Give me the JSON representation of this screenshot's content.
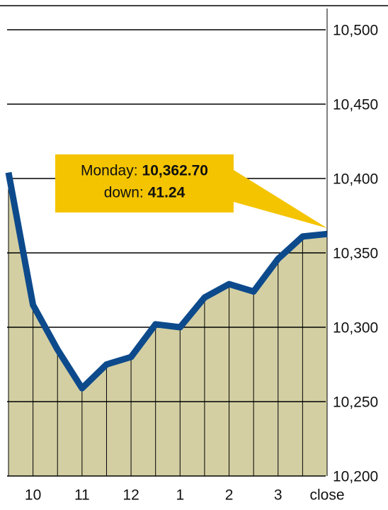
{
  "chart_data": {
    "type": "area",
    "categories": [
      null,
      "10",
      null,
      "11",
      null,
      "12",
      null,
      "1",
      null,
      "2",
      null,
      "3",
      null,
      "close"
    ],
    "values": [
      10404,
      10315,
      10285,
      10259,
      10275,
      10280,
      10302,
      10300,
      10320,
      10329,
      10324,
      10346,
      10361,
      10362.7
    ],
    "color": "#0d4a8c",
    "fill": "#d3cfa3",
    "ylim": [
      10200,
      10500
    ],
    "yticks": [
      {
        "value": 10200,
        "label": "10,200"
      },
      {
        "value": 10250,
        "label": "10,250"
      },
      {
        "value": 10300,
        "label": "10,300"
      },
      {
        "value": 10350,
        "label": "10,350"
      },
      {
        "value": 10400,
        "label": "10,400"
      },
      {
        "value": 10450,
        "label": "10,450"
      },
      {
        "value": 10500,
        "label": "10,500"
      }
    ],
    "grid": true,
    "annotation": {
      "label1": "Monday:",
      "value1": "10,362.70",
      "label2": "down:",
      "value2": "41.24"
    }
  }
}
